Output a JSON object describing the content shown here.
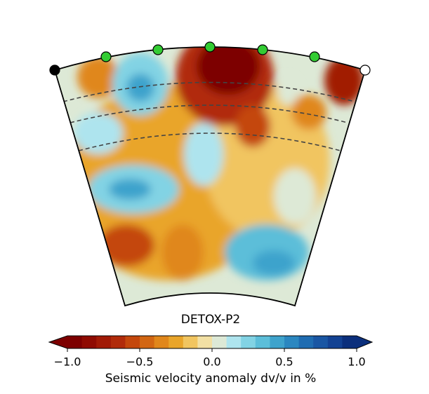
{
  "chart_data": {
    "type": "colorbar",
    "title": "DETOX-P2",
    "xlabel": "Seismic velocity anomaly dv/v in %",
    "xlim": [
      -1,
      1
    ],
    "xticks": [
      {
        "value": -1,
        "label": "−1.0"
      },
      {
        "value": -0.5,
        "label": "−0.5"
      },
      {
        "value": 0,
        "label": "0.0"
      },
      {
        "value": 0.5,
        "label": "0.5"
      },
      {
        "value": 1,
        "label": "1.0"
      }
    ],
    "extend": "both",
    "colors": [
      "#7d0000",
      "#8f0b02",
      "#a11a06",
      "#b12b0a",
      "#c4470c",
      "#d26612",
      "#e0871b",
      "#e9a52a",
      "#f1c560",
      "#f2e0a4",
      "#dde9d6",
      "#aee4ee",
      "#82d3e4",
      "#5cbed9",
      "#3ea3cc",
      "#2b87c0",
      "#1f6cb1",
      "#1956a3",
      "#134293",
      "#0b2f7c"
    ]
  }
}
